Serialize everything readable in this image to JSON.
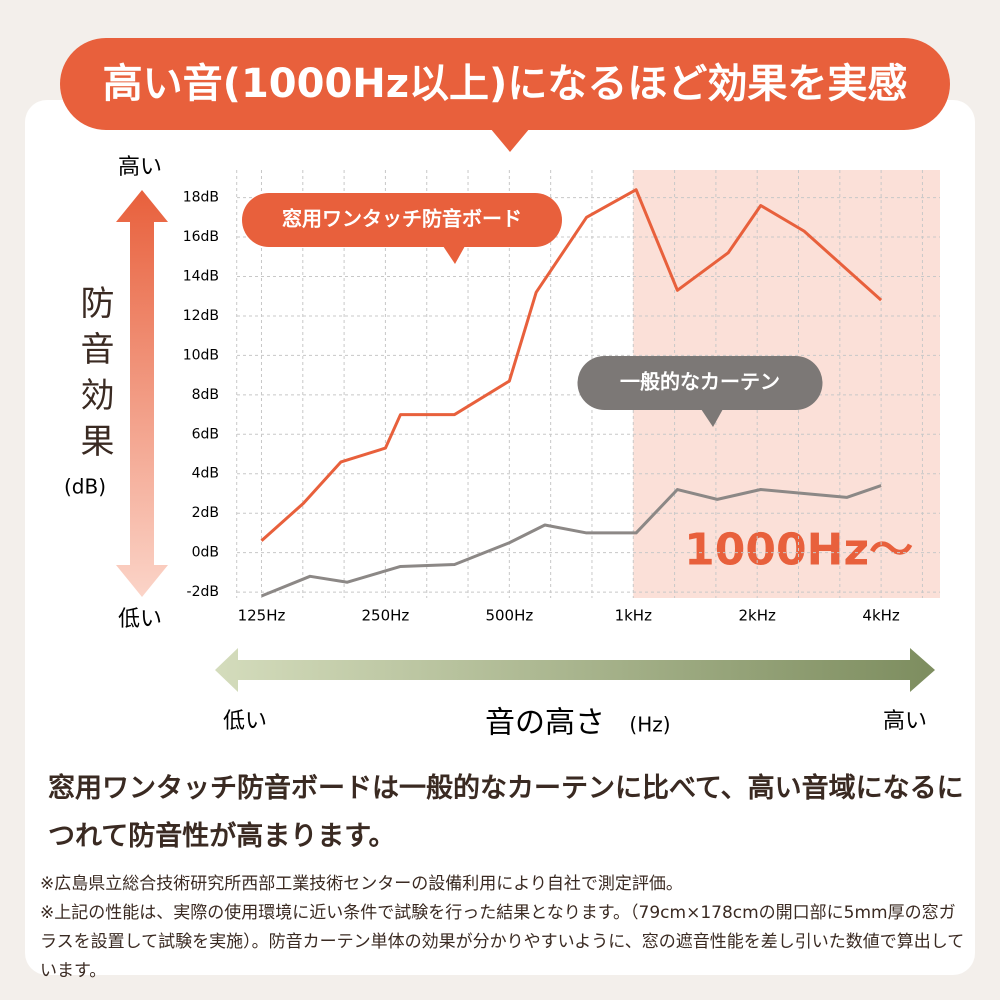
{
  "header": {
    "title": "高い音(1000Hz以上)になるほど効果を実感"
  },
  "chart_data": {
    "type": "line",
    "log_x": true,
    "grid": true,
    "y_label": "防音効果",
    "y_unit": "(dB)",
    "y_high": "高い",
    "y_low": "低い",
    "x_label": "音の高さ",
    "x_unit": "(Hz)",
    "x_low": "低い",
    "x_high": "高い",
    "highlight_label": "1000Hz〜",
    "highlight_from": 1000,
    "xlim": [
      109,
      5560
    ],
    "ylim": [
      -2.3,
      19.4
    ],
    "xticks": [
      {
        "value": 125,
        "label": "125Hz"
      },
      {
        "value": 250,
        "label": "250Hz"
      },
      {
        "value": 500,
        "label": "500Hz"
      },
      {
        "value": 1000,
        "label": "1kHz"
      },
      {
        "value": 2000,
        "label": "2kHz"
      },
      {
        "value": 4000,
        "label": "4kHz"
      }
    ],
    "yticks": [
      {
        "value": -2,
        "label": "-2dB"
      },
      {
        "value": 0,
        "label": "0dB"
      },
      {
        "value": 2,
        "label": "2dB"
      },
      {
        "value": 4,
        "label": "4dB"
      },
      {
        "value": 6,
        "label": "6dB"
      },
      {
        "value": 8,
        "label": "8dB"
      },
      {
        "value": 10,
        "label": "10dB"
      },
      {
        "value": 12,
        "label": "12dB"
      },
      {
        "value": 14,
        "label": "14dB"
      },
      {
        "value": 16,
        "label": "16dB"
      },
      {
        "value": 18,
        "label": "18dB"
      }
    ],
    "series": [
      {
        "name": "窓用ワンタッチ防音ボード",
        "color": "#e8603c",
        "x": [
          125,
          158,
          195,
          250,
          272,
          368,
          500,
          581,
          770,
          1016,
          1280,
          1700,
          2040,
          2600,
          4000
        ],
        "values": [
          0.6,
          2.5,
          4.6,
          5.3,
          7.0,
          7.0,
          8.7,
          13.2,
          17.0,
          18.4,
          13.3,
          15.2,
          17.6,
          16.3,
          12.8
        ]
      },
      {
        "name": "一般的なカーテン",
        "color": "#8c8886",
        "x": [
          125,
          164,
          202,
          272,
          368,
          500,
          610,
          770,
          1016,
          1280,
          1600,
          2040,
          2600,
          3300,
          4000
        ],
        "values": [
          -2.2,
          -1.2,
          -1.5,
          -0.7,
          -0.6,
          0.5,
          1.4,
          1.0,
          1.0,
          3.2,
          2.7,
          3.2,
          3.0,
          2.8,
          3.4
        ]
      }
    ]
  },
  "body": {
    "text": "窓用ワンタッチ防音ボードは一般的なカーテンに比べて、高い音域になるにつれて防音性が高まります。",
    "notes": [
      "※広島県立総合技術研究所西部工業技術センターの設備利用により自社で測定評価。",
      "※上記の性能は、実際の使用環境に近い条件で試験を行った結果となります。（79cm×178cmの開口部に5mm厚の窓ガラスを設置して試験を実施）。防音カーテン単体の効果が分かりやすいように、窓の遮音性能を差し引いた数値で算出しています。"
    ]
  }
}
